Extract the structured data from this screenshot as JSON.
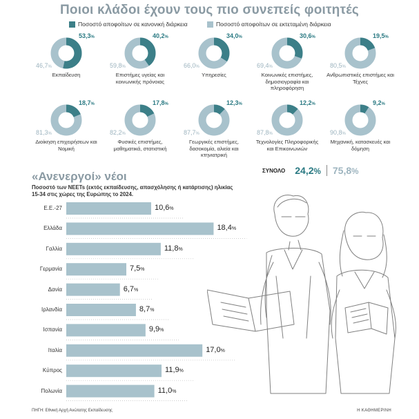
{
  "header": {
    "title": "Ποιοι κλάδοι έχουν τους πιο συνεπείς φοιτητές",
    "legend": [
      {
        "label": "Ποσοστό αποφοίτων σε κανονική διάρκεια",
        "color": "#3c7f88"
      },
      {
        "label": "Ποσοστό αποφοίτων σε εκτεταμένη διάρκεια",
        "color": "#a8c2cc"
      }
    ]
  },
  "colors": {
    "dark": "#3c7f88",
    "light": "#a8c2cc",
    "bar": "#a8c2cc",
    "text_dark": "#2b7a83"
  },
  "chart_data": [
    {
      "type": "pie",
      "title": "Ποιοι κλάδοι έχουν τους πιο συνεπείς φοιτητές",
      "series_names": [
        "Ποσοστό αποφοίτων σε κανονική διάρκεια",
        "Ποσοστό αποφοίτων σε εκτεταμένη διάρκεια"
      ],
      "items": [
        {
          "label": "Εκπαίδευση",
          "normal": "53,3",
          "extended": "46,7",
          "normal_value": 53.3
        },
        {
          "label": "Επιστήμες υγείας και κοινωνικής πρόνοιας",
          "normal": "40,2",
          "extended": "59,8",
          "normal_value": 40.2
        },
        {
          "label": "Υπηρεσίες",
          "normal": "34,0",
          "extended": "66,0",
          "normal_value": 34.0
        },
        {
          "label": "Κοινωνικές επιστήμες, δημοσιογραφία και πληροφόρηση",
          "normal": "30,6",
          "extended": "69,4",
          "normal_value": 30.6
        },
        {
          "label": "Ανθρωπιστικές επιστήμες και Τέχνες",
          "normal": "19,5",
          "extended": "80,5",
          "normal_value": 19.5
        },
        {
          "label": "Διοίκηση επιχειρήσεων και Νομική",
          "normal": "18,7",
          "extended": "81,3",
          "normal_value": 18.7
        },
        {
          "label": "Φυσικές επιστήμες, μαθηματικά, στατιστική",
          "normal": "17,8",
          "extended": "82,2",
          "normal_value": 17.8
        },
        {
          "label": "Γεωργικές επιστήμες, δασοκομία, αλιεία και κτηνιατρική",
          "normal": "12,3",
          "extended": "87,7",
          "normal_value": 12.3
        },
        {
          "label": "Τεχνολογίες Πληροφορικής και Επικοινωνιών",
          "normal": "12,2",
          "extended": "87,8",
          "normal_value": 12.2
        },
        {
          "label": "Μηχανική, κατασκευές και δόμηση",
          "normal": "9,2",
          "extended": "90,8",
          "normal_value": 9.2
        }
      ],
      "total": {
        "label": "ΣΥΝΟΛΟ",
        "normal": "24,2",
        "extended": "75,8"
      }
    },
    {
      "type": "bar",
      "orientation": "horizontal",
      "title": "«Ανενεργοί» νέοι",
      "subtitle": "Ποσοστό των NEETs (εκτός εκπαίδευσης, απασχόλησης ή κατάρτισης) ηλικίας 15-34 στις χώρες της Ευρώπης το 2024.",
      "categories": [
        "Ε.Ε.-27",
        "Ελλάδα",
        "Γαλλία",
        "Γερμανία",
        "Δανία",
        "Ιρλανδία",
        "Ισπανία",
        "Ιταλία",
        "Κύπρος",
        "Πολωνία"
      ],
      "values": [
        10.6,
        18.4,
        11.8,
        7.5,
        6.7,
        8.7,
        9.9,
        17.0,
        11.9,
        11.0
      ],
      "value_labels": [
        "10,6",
        "18,4",
        "11,8",
        "7,5",
        "6,7",
        "8,7",
        "9,9",
        "17,0",
        "11,9",
        "11,0"
      ],
      "unit": "%"
    }
  ],
  "footer": {
    "source": "ΠΗΓΗ: Εθνική Αρχή Ανώτατης Εκπαίδευσης",
    "brand": "Η ΚΑΘΗΜΕΡΙΝΗ"
  }
}
